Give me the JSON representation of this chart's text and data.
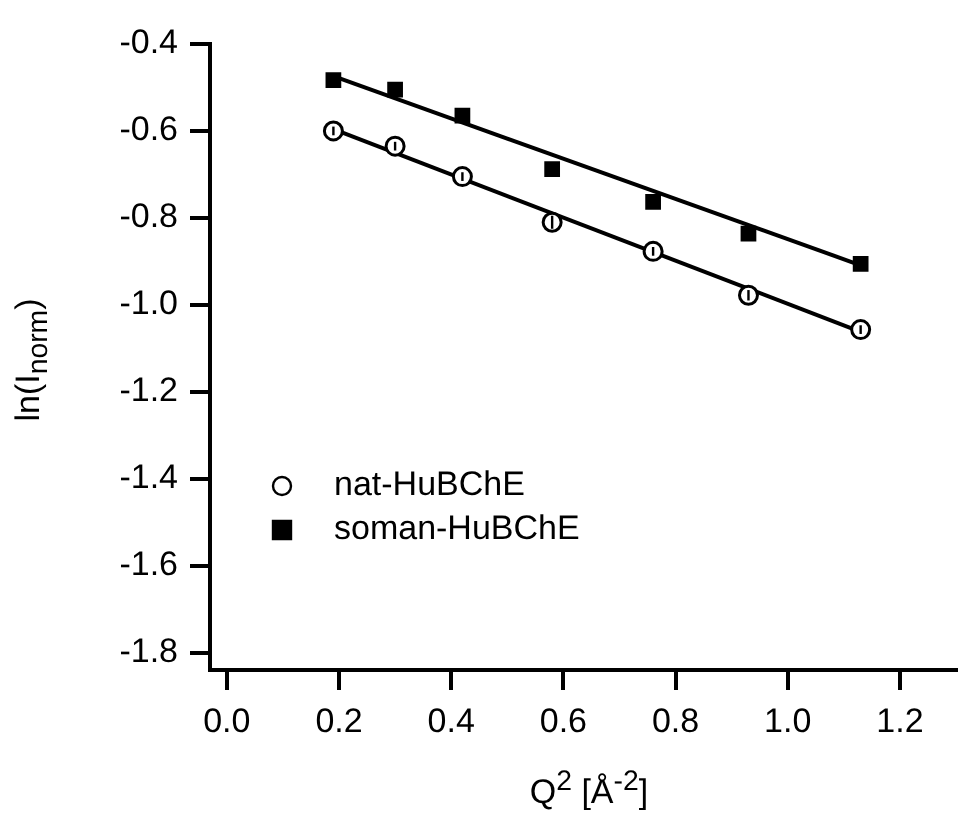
{
  "chart_data": {
    "type": "scatter",
    "xlabel": "Q$^{2}$ [Å$^{-2}$]",
    "ylabel": "ln(I$_{norm}$)",
    "xlim": [
      -0.03,
      1.3
    ],
    "xticks": [
      {
        "value": 0,
        "label": "0.0"
      },
      0.2,
      0.4,
      0.6,
      0.8,
      {
        "value": 1,
        "label": "1.0"
      },
      1.2
    ],
    "ylim": [
      -1.84,
      -0.4
    ],
    "yticks": [
      -0.4,
      -0.6,
      -0.8,
      {
        "value": -1,
        "label": "-1.0"
      },
      -1.2,
      -1.4,
      -1.6,
      -1.8
    ],
    "grid": false,
    "legend": "left",
    "series": [
      {
        "name": "nat-HuBChE",
        "color": "#000000",
        "marker": "circle",
        "x": [
          0.19,
          0.3,
          0.42,
          0.58,
          0.76,
          0.93,
          1.13
        ],
        "values": [
          -0.6,
          -0.635,
          -0.705,
          -0.81,
          -0.877,
          -0.978,
          -1.057
        ],
        "errors": [
          0.01,
          0.01,
          0.01,
          0.015,
          0.01,
          0.012,
          0.01
        ]
      },
      {
        "name": "soman-HuBChE",
        "color": "#000000",
        "marker": "square",
        "x": [
          0.19,
          0.3,
          0.42,
          0.58,
          0.76,
          0.93,
          1.13
        ],
        "values": [
          -0.483,
          -0.505,
          -0.565,
          -0.688,
          -0.763,
          -0.836,
          -0.906
        ],
        "errors": [
          0.01,
          0.01,
          0.01,
          0.01,
          0.01,
          0.01,
          0.01
        ]
      },
      {
        "type": "line",
        "color": "#000000",
        "marker": "none",
        "x": [
          0.19,
          1.13
        ],
        "values": [
          -0.596,
          -1.062
        ]
      },
      {
        "type": "line",
        "color": "#000000",
        "marker": "none",
        "x": [
          0.19,
          1.13
        ],
        "values": [
          -0.474,
          -0.909
        ]
      }
    ]
  }
}
